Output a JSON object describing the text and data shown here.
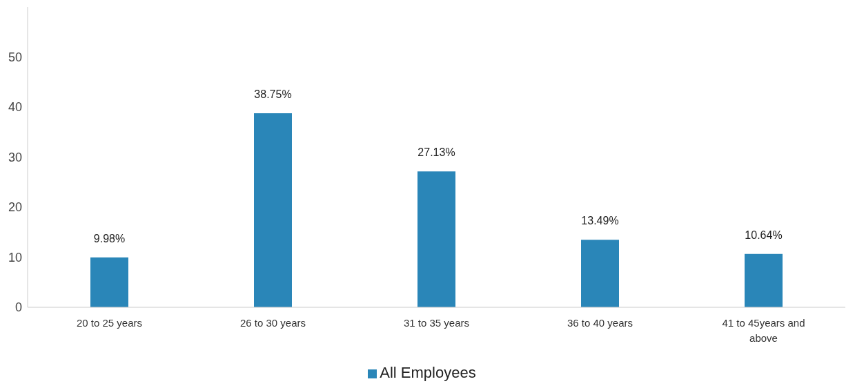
{
  "chart_data": {
    "type": "bar",
    "categories": [
      "20 to 25 years",
      "26 to 30 years",
      "31 to 35 years",
      "36 to 40 years",
      "41 to 45years and above"
    ],
    "series": [
      {
        "name": "All Employees",
        "color": "#2a86b8",
        "values": [
          9.98,
          38.75,
          27.13,
          13.49,
          10.64
        ],
        "value_labels": [
          "9.98%",
          "38.75%",
          "27.13%",
          "13.49%",
          "10.64%"
        ]
      }
    ],
    "ylim": [
      0,
      60
    ],
    "yticks": [
      0,
      10,
      20,
      30,
      40,
      50
    ],
    "legend": "bottom"
  }
}
